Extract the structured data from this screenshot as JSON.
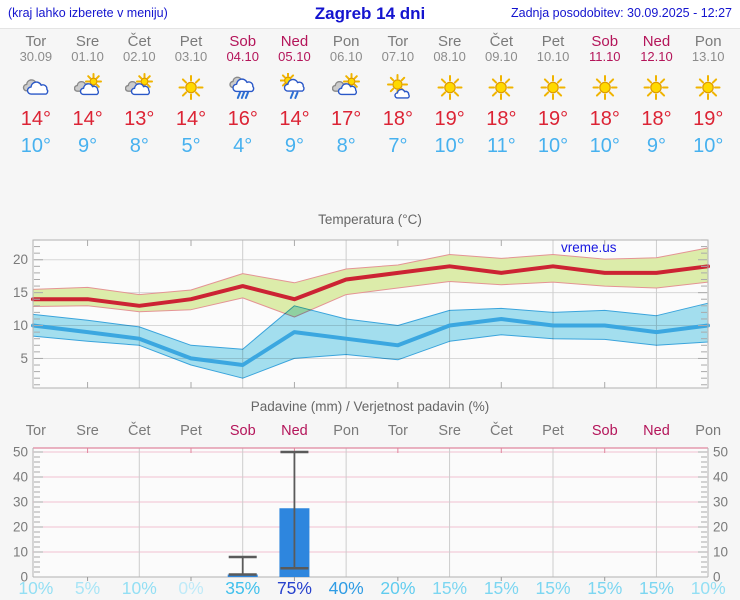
{
  "header": {
    "note": "(kraj lahko izberete v meniju)",
    "title": "Zagreb 14 dni",
    "updated": "Zadnja posodobitev: 30.09.2025 - 12:27"
  },
  "days": [
    {
      "name": "Tor",
      "date": "30.09",
      "weekend": false,
      "icon": "cloudy",
      "high": "14°",
      "low": "10°"
    },
    {
      "name": "Sre",
      "date": "01.10",
      "weekend": false,
      "icon": "partly-sunny",
      "high": "14°",
      "low": "9°"
    },
    {
      "name": "Čet",
      "date": "02.10",
      "weekend": false,
      "icon": "partly-sunny",
      "high": "13°",
      "low": "8°"
    },
    {
      "name": "Pet",
      "date": "03.10",
      "weekend": false,
      "icon": "sunny",
      "high": "14°",
      "low": "5°"
    },
    {
      "name": "Sob",
      "date": "04.10",
      "weekend": true,
      "icon": "rainy",
      "high": "16°",
      "low": "4°"
    },
    {
      "name": "Ned",
      "date": "05.10",
      "weekend": true,
      "icon": "sun-rain",
      "high": "14°",
      "low": "9°"
    },
    {
      "name": "Pon",
      "date": "06.10",
      "weekend": false,
      "icon": "partly-sunny",
      "high": "17°",
      "low": "8°"
    },
    {
      "name": "Tor",
      "date": "07.10",
      "weekend": false,
      "icon": "mostly-sunny",
      "high": "18°",
      "low": "7°"
    },
    {
      "name": "Sre",
      "date": "08.10",
      "weekend": false,
      "icon": "sunny",
      "high": "19°",
      "low": "10°"
    },
    {
      "name": "Čet",
      "date": "09.10",
      "weekend": false,
      "icon": "sunny",
      "high": "18°",
      "low": "11°"
    },
    {
      "name": "Pet",
      "date": "10.10",
      "weekend": false,
      "icon": "sunny",
      "high": "19°",
      "low": "10°"
    },
    {
      "name": "Sob",
      "date": "11.10",
      "weekend": true,
      "icon": "sunny",
      "high": "18°",
      "low": "10°"
    },
    {
      "name": "Ned",
      "date": "12.10",
      "weekend": true,
      "icon": "sunny",
      "high": "18°",
      "low": "9°"
    },
    {
      "name": "Pon",
      "date": "13.10",
      "weekend": false,
      "icon": "sunny",
      "high": "19°",
      "low": "10°"
    }
  ],
  "chart_data": [
    {
      "type": "line",
      "title": "Temperatura (°C)",
      "watermark": "vreme.us",
      "x_labels": [
        "Tor",
        "Sre",
        "Čet",
        "Pet",
        "Sob",
        "Ned",
        "Pon",
        "Tor",
        "Sre",
        "Čet",
        "Pet",
        "Sob",
        "Ned",
        "Pon"
      ],
      "ylim": [
        0.5,
        23
      ],
      "yticks": [
        5,
        10,
        15,
        20
      ],
      "grid": true,
      "series": [
        {
          "name": "max_temp",
          "color": "#cc2333",
          "values": [
            14,
            14,
            13,
            14,
            16,
            14,
            17,
            18,
            19,
            18,
            19,
            18,
            18,
            19
          ]
        },
        {
          "name": "max_band_upper",
          "values": [
            15.5,
            15.8,
            14.7,
            15.4,
            17.9,
            16.5,
            18.6,
            19.2,
            20.8,
            20.2,
            20.8,
            20.1,
            20.3,
            21.8
          ]
        },
        {
          "name": "max_band_lower",
          "values": [
            12.9,
            13,
            12.1,
            12.4,
            14.2,
            11.3,
            14.7,
            15.7,
            16.7,
            16.2,
            16.6,
            16,
            15.7,
            16.6
          ]
        },
        {
          "name": "min_temp",
          "color": "#3ba7e0",
          "values": [
            10,
            9,
            8,
            5,
            4,
            9,
            8,
            7,
            10,
            11,
            10,
            10,
            9,
            10
          ]
        },
        {
          "name": "min_band_upper",
          "values": [
            11.7,
            10.8,
            9.8,
            7,
            6.4,
            13,
            11,
            10,
            12.3,
            12.6,
            12,
            12.3,
            11.5,
            13.4
          ]
        },
        {
          "name": "min_band_lower",
          "values": [
            8.4,
            7.6,
            7,
            4,
            2,
            5,
            5.6,
            4.8,
            7.6,
            8.6,
            8,
            7.9,
            7,
            7.5
          ]
        }
      ]
    },
    {
      "type": "bar",
      "title": "Padavine (mm) / Verjetnost padavin (%)",
      "x_labels": [
        "Tor",
        "Sre",
        "Čet",
        "Pet",
        "Sob",
        "Ned",
        "Pon",
        "Tor",
        "Sre",
        "Čet",
        "Pet",
        "Sob",
        "Ned",
        "Pon"
      ],
      "ylim": [
        0,
        51.6
      ],
      "yticks": [
        0,
        10,
        20,
        30,
        40,
        50
      ],
      "values": [
        0,
        0,
        0,
        0,
        1,
        27.5,
        0,
        0,
        0,
        0,
        0,
        0,
        0,
        0
      ],
      "bars": [
        {
          "day_index": 4,
          "value": 1,
          "whisker": [
            1,
            8
          ]
        },
        {
          "day_index": 5,
          "value": 27.5,
          "whisker": [
            3.5,
            50
          ]
        }
      ],
      "probabilities": [
        "10%",
        "5%",
        "10%",
        "0%",
        "35%",
        "75%",
        "40%",
        "20%",
        "15%",
        "15%",
        "15%",
        "15%",
        "15%",
        "10%"
      ],
      "probability_colors": [
        "#93dff4",
        "#a9e5f6",
        "#93dff4",
        "#bfeaf8",
        "#41c0ec",
        "#2742cd",
        "#2f9ce4",
        "#5fccef",
        "#7cd6f1",
        "#7cd6f1",
        "#7cd6f1",
        "#7cd6f1",
        "#7cd6f1",
        "#93dff4"
      ]
    }
  ],
  "colors": {
    "header_blue": "#1414cf",
    "weekend": "#b4155a",
    "day_gray": "#7a7a7a",
    "date_gray": "#8c8c8c",
    "high_red": "#dc2435",
    "low_blue": "#47b1ef",
    "bar_blue": "#2e86de",
    "temp_max_band": "#dcecaa",
    "temp_max_band_edge": "#e49494",
    "temp_min_band": "#a6e2f2",
    "watermark_blue": "#1717e0"
  }
}
